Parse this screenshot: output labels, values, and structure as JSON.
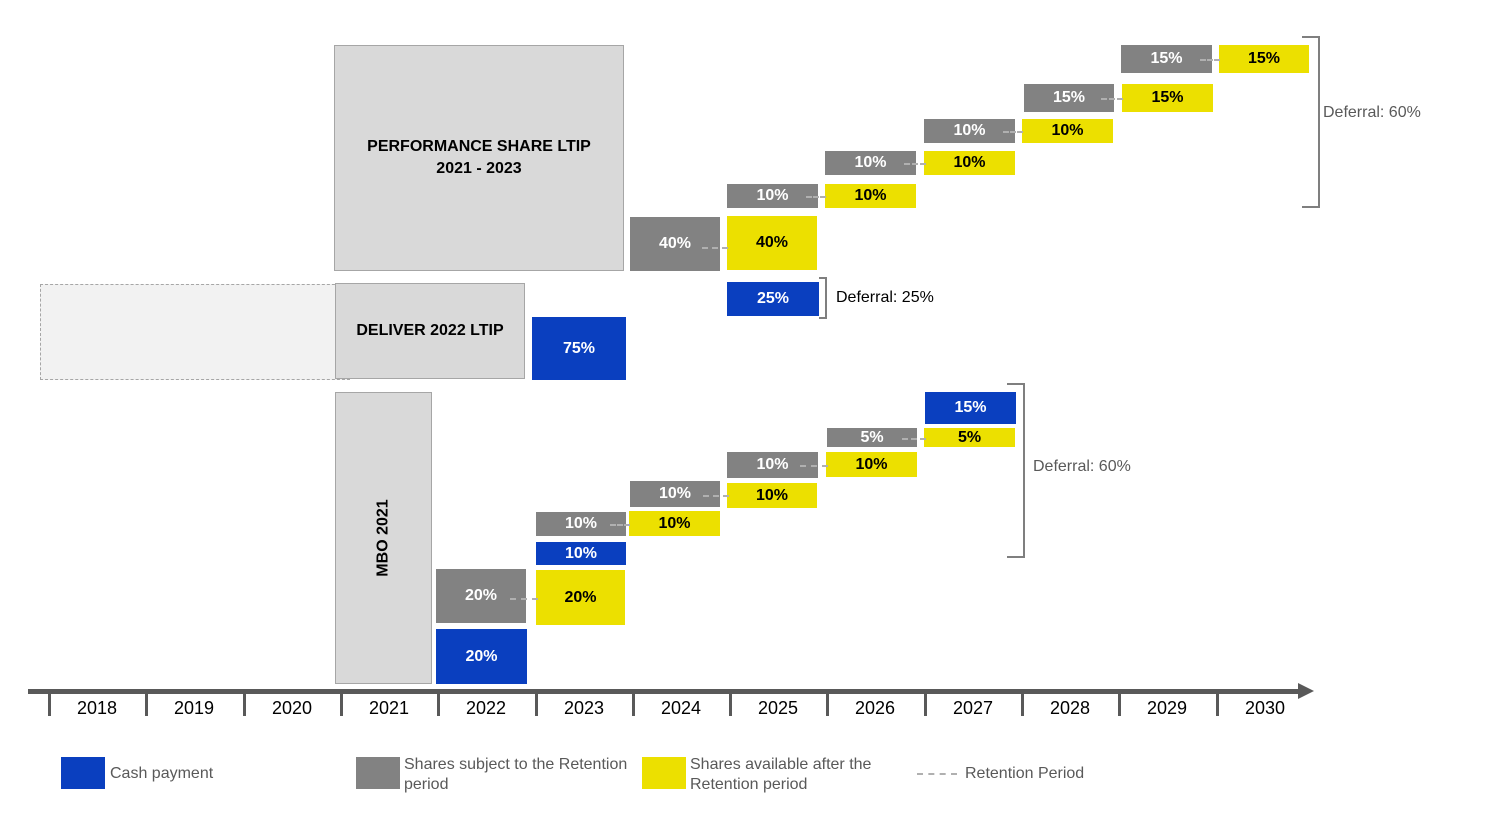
{
  "plans": {
    "performance_share": {
      "line1": "PERFORMANCE SHARE LTIP",
      "line2": "2021 - 2023"
    },
    "deliver": "DELIVER 2022 LTIP",
    "mbo": "MBO 2021"
  },
  "performance_share_ltip": {
    "y2024": {
      "retained": "40%",
      "available": "40%"
    },
    "cash_2025": "25%",
    "y2025": {
      "retained": "10%",
      "available": "10%"
    },
    "y2026": {
      "retained": "10%",
      "available": "10%"
    },
    "y2027": {
      "retained": "10%",
      "available": "10%"
    },
    "y2028": {
      "retained": "15%",
      "available": "15%"
    },
    "y2029": {
      "retained": "15%",
      "available": "15%"
    }
  },
  "deliver_ltip": {
    "cash_2023": "75%"
  },
  "mbo_2021": {
    "cash_2022": "20%",
    "y2022": {
      "retained": "20%",
      "available": "20%"
    },
    "cash_2023": "10%",
    "y2023": {
      "retained": "10%",
      "available": "10%"
    },
    "y2024": {
      "retained": "10%",
      "available": "10%"
    },
    "y2025": {
      "retained": "10%",
      "available": "10%"
    },
    "y2026": {
      "retained": "5%",
      "available": "5%"
    },
    "cash_2027": "15%"
  },
  "deferrals": {
    "performance": "Deferral: 60%",
    "deliver": "Deferral: 25%",
    "mbo": "Deferral: 60%"
  },
  "axis": {
    "years": [
      "2018",
      "2019",
      "2020",
      "2021",
      "2022",
      "2023",
      "2024",
      "2025",
      "2026",
      "2027",
      "2028",
      "2029",
      "2030"
    ]
  },
  "legend": {
    "cash": "Cash payment",
    "retained_line1": "Shares subject to the Retention",
    "retained_line2": "period",
    "available_line1": "Shares available after the",
    "available_line2": "Retention period",
    "retention": "Retention Period"
  },
  "colors": {
    "cash": "#0a3fbf",
    "retained": "#828282",
    "available": "#ece000",
    "plan": "#d9d9d9"
  }
}
